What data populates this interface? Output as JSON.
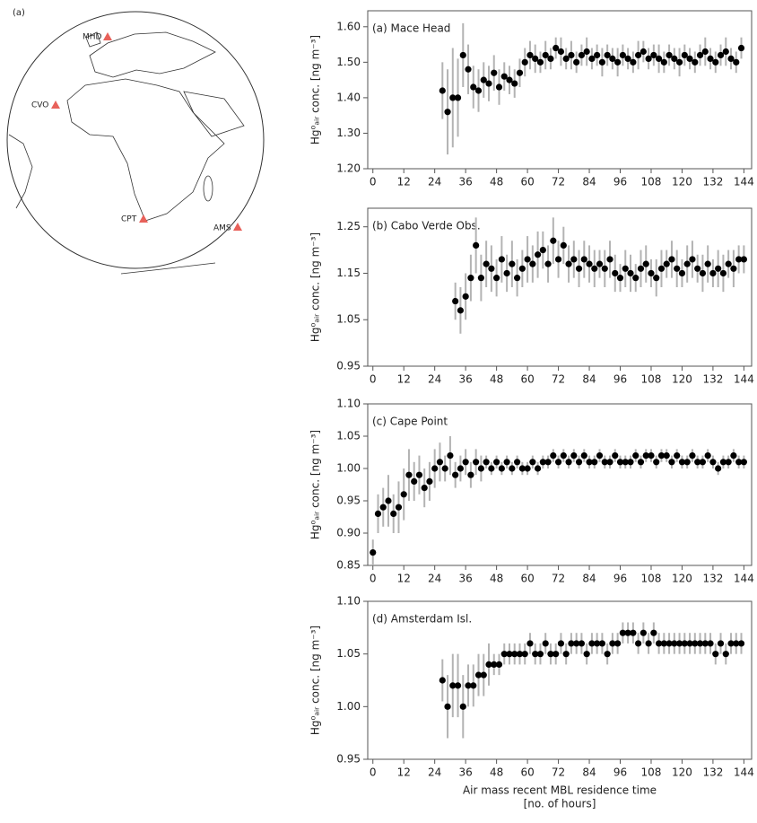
{
  "map": {
    "label": "(a)",
    "stations": [
      "MHD",
      "CVO",
      "CPT",
      "AMS"
    ]
  },
  "chart_data": [
    {
      "type": "scatter",
      "title": "(a) Mace Head",
      "ylabel": "Hg⁰ₐᵢᵣ conc. [ng m⁻³]",
      "color": "#000000",
      "error_color": "#b3b3b3",
      "x": [
        27,
        29,
        31,
        33,
        35,
        37,
        39,
        41,
        43,
        45,
        47,
        49,
        51,
        53,
        55,
        57,
        59,
        61,
        63,
        65,
        67,
        69,
        71,
        73,
        75,
        77,
        79,
        81,
        83,
        85,
        87,
        89,
        91,
        93,
        95,
        97,
        99,
        101,
        103,
        105,
        107,
        109,
        111,
        113,
        115,
        117,
        119,
        121,
        123,
        125,
        127,
        129,
        131,
        133,
        135,
        137,
        139,
        141,
        143
      ],
      "values": [
        1.42,
        1.36,
        1.4,
        1.4,
        1.52,
        1.48,
        1.43,
        1.42,
        1.45,
        1.44,
        1.47,
        1.43,
        1.46,
        1.45,
        1.44,
        1.47,
        1.5,
        1.52,
        1.51,
        1.5,
        1.52,
        1.51,
        1.54,
        1.53,
        1.51,
        1.52,
        1.5,
        1.52,
        1.53,
        1.51,
        1.52,
        1.5,
        1.52,
        1.51,
        1.5,
        1.52,
        1.51,
        1.5,
        1.52,
        1.53,
        1.51,
        1.52,
        1.51,
        1.5,
        1.52,
        1.51,
        1.5,
        1.52,
        1.51,
        1.5,
        1.52,
        1.53,
        1.51,
        1.5,
        1.52,
        1.53,
        1.51,
        1.5,
        1.54
      ],
      "errors": [
        0.08,
        0.12,
        0.14,
        0.11,
        0.09,
        0.07,
        0.06,
        0.06,
        0.05,
        0.05,
        0.05,
        0.05,
        0.04,
        0.04,
        0.04,
        0.04,
        0.04,
        0.04,
        0.04,
        0.03,
        0.04,
        0.03,
        0.03,
        0.04,
        0.03,
        0.04,
        0.03,
        0.03,
        0.04,
        0.03,
        0.03,
        0.04,
        0.03,
        0.03,
        0.04,
        0.03,
        0.03,
        0.03,
        0.04,
        0.03,
        0.03,
        0.03,
        0.04,
        0.03,
        0.03,
        0.03,
        0.04,
        0.03,
        0.03,
        0.03,
        0.03,
        0.04,
        0.03,
        0.03,
        0.03,
        0.04,
        0.03,
        0.03,
        0.03
      ],
      "xlim": [
        -2,
        147
      ],
      "xticks": [
        0,
        12,
        24,
        36,
        48,
        60,
        72,
        84,
        96,
        108,
        120,
        132,
        144
      ],
      "ylim": [
        1.2,
        1.645
      ],
      "yticks": [
        {
          "value": 1.2,
          "label": "1.20"
        },
        {
          "value": 1.3,
          "label": "1.30"
        },
        {
          "value": 1.4,
          "label": "1.40"
        },
        {
          "value": 1.5,
          "label": "1.50"
        },
        {
          "value": 1.6,
          "label": "1.60"
        }
      ]
    },
    {
      "type": "scatter",
      "title": "(b) Cabo Verde Obs.",
      "ylabel": "Hg⁰ₐᵢᵣ conc. [ng m⁻³]",
      "color": "#000000",
      "error_color": "#b3b3b3",
      "x": [
        32,
        34,
        36,
        38,
        40,
        42,
        44,
        46,
        48,
        50,
        52,
        54,
        56,
        58,
        60,
        62,
        64,
        66,
        68,
        70,
        72,
        74,
        76,
        78,
        80,
        82,
        84,
        86,
        88,
        90,
        92,
        94,
        96,
        98,
        100,
        102,
        104,
        106,
        108,
        110,
        112,
        114,
        116,
        118,
        120,
        122,
        124,
        126,
        128,
        130,
        132,
        134,
        136,
        138,
        140,
        142,
        144
      ],
      "values": [
        1.09,
        1.07,
        1.1,
        1.14,
        1.21,
        1.14,
        1.17,
        1.16,
        1.14,
        1.18,
        1.15,
        1.17,
        1.14,
        1.16,
        1.18,
        1.17,
        1.19,
        1.2,
        1.17,
        1.22,
        1.18,
        1.21,
        1.17,
        1.18,
        1.16,
        1.18,
        1.17,
        1.16,
        1.17,
        1.16,
        1.18,
        1.15,
        1.14,
        1.16,
        1.15,
        1.14,
        1.16,
        1.17,
        1.15,
        1.14,
        1.16,
        1.17,
        1.18,
        1.16,
        1.15,
        1.17,
        1.18,
        1.16,
        1.15,
        1.17,
        1.15,
        1.16,
        1.15,
        1.17,
        1.16,
        1.18,
        1.18
      ],
      "errors": [
        0.04,
        0.05,
        0.05,
        0.05,
        0.06,
        0.05,
        0.05,
        0.05,
        0.04,
        0.05,
        0.04,
        0.05,
        0.04,
        0.04,
        0.05,
        0.04,
        0.05,
        0.04,
        0.04,
        0.05,
        0.04,
        0.04,
        0.04,
        0.04,
        0.04,
        0.04,
        0.04,
        0.04,
        0.03,
        0.04,
        0.04,
        0.04,
        0.03,
        0.04,
        0.04,
        0.03,
        0.04,
        0.04,
        0.03,
        0.04,
        0.04,
        0.03,
        0.04,
        0.04,
        0.03,
        0.04,
        0.04,
        0.03,
        0.04,
        0.04,
        0.03,
        0.04,
        0.04,
        0.03,
        0.04,
        0.03,
        0.03
      ],
      "xlim": [
        -2,
        147
      ],
      "xticks": [
        0,
        12,
        24,
        36,
        48,
        60,
        72,
        84,
        96,
        108,
        120,
        132,
        144
      ],
      "ylim": [
        0.95,
        1.29
      ],
      "yticks": [
        {
          "value": 0.95,
          "label": "0.95"
        },
        {
          "value": 1.05,
          "label": "1.05"
        },
        {
          "value": 1.15,
          "label": "1.15"
        },
        {
          "value": 1.25,
          "label": "1.25"
        }
      ]
    },
    {
      "type": "scatter",
      "title": "(c) Cape Point",
      "ylabel": "Hg⁰ₐᵢᵣ conc. [ng m⁻³]",
      "color": "#000000",
      "error_color": "#b3b3b3",
      "x": [
        0,
        2,
        4,
        6,
        8,
        10,
        12,
        14,
        16,
        18,
        20,
        22,
        24,
        26,
        28,
        30,
        32,
        34,
        36,
        38,
        40,
        42,
        44,
        46,
        48,
        50,
        52,
        54,
        56,
        58,
        60,
        62,
        64,
        66,
        68,
        70,
        72,
        74,
        76,
        78,
        80,
        82,
        84,
        86,
        88,
        90,
        92,
        94,
        96,
        98,
        100,
        102,
        104,
        106,
        108,
        110,
        112,
        114,
        116,
        118,
        120,
        122,
        124,
        126,
        128,
        130,
        132,
        134,
        136,
        138,
        140,
        142,
        144
      ],
      "values": [
        0.87,
        0.93,
        0.94,
        0.95,
        0.93,
        0.94,
        0.96,
        0.99,
        0.98,
        0.99,
        0.97,
        0.98,
        1.0,
        1.01,
        1.0,
        1.02,
        0.99,
        1.0,
        1.01,
        0.99,
        1.01,
        1.0,
        1.01,
        1.0,
        1.01,
        1.0,
        1.01,
        1.0,
        1.01,
        1.0,
        1.0,
        1.01,
        1.0,
        1.01,
        1.01,
        1.02,
        1.01,
        1.02,
        1.01,
        1.02,
        1.01,
        1.02,
        1.01,
        1.01,
        1.02,
        1.01,
        1.01,
        1.02,
        1.01,
        1.01,
        1.01,
        1.02,
        1.01,
        1.02,
        1.02,
        1.01,
        1.02,
        1.02,
        1.01,
        1.02,
        1.01,
        1.01,
        1.02,
        1.01,
        1.01,
        1.02,
        1.01,
        1.0,
        1.01,
        1.01,
        1.02,
        1.01,
        1.01
      ],
      "errors": [
        0.02,
        0.03,
        0.03,
        0.04,
        0.03,
        0.04,
        0.04,
        0.04,
        0.03,
        0.03,
        0.03,
        0.03,
        0.03,
        0.03,
        0.02,
        0.03,
        0.02,
        0.02,
        0.02,
        0.02,
        0.02,
        0.02,
        0.01,
        0.01,
        0.01,
        0.01,
        0.01,
        0.01,
        0.01,
        0.01,
        0.01,
        0.01,
        0.01,
        0.01,
        0.01,
        0.01,
        0.01,
        0.01,
        0.01,
        0.01,
        0.01,
        0.01,
        0.01,
        0.01,
        0.01,
        0.01,
        0.01,
        0.01,
        0.01,
        0.01,
        0.01,
        0.01,
        0.01,
        0.01,
        0.01,
        0.01,
        0.01,
        0.01,
        0.01,
        0.01,
        0.01,
        0.01,
        0.01,
        0.01,
        0.01,
        0.01,
        0.01,
        0.01,
        0.01,
        0.01,
        0.01,
        0.01,
        0.01
      ],
      "xlim": [
        -2,
        147
      ],
      "xticks": [
        0,
        12,
        24,
        36,
        48,
        60,
        72,
        84,
        96,
        108,
        120,
        132,
        144
      ],
      "ylim": [
        0.85,
        1.1
      ],
      "yticks": [
        {
          "value": 0.85,
          "label": "0.85"
        },
        {
          "value": 0.9,
          "label": "0.90"
        },
        {
          "value": 0.95,
          "label": "0.95"
        },
        {
          "value": 1.0,
          "label": "1.00"
        },
        {
          "value": 1.05,
          "label": "1.05"
        },
        {
          "value": 1.1,
          "label": "1.10"
        }
      ]
    },
    {
      "type": "scatter",
      "title": "(d) Amsterdam Isl.",
      "ylabel": "Hg⁰ₐᵢᵣ conc. [ng m⁻³]",
      "color": "#000000",
      "error_color": "#b3b3b3",
      "xlabel": [
        "Air mass recent MBL residence time",
        "[no. of hours]"
      ],
      "x": [
        27,
        29,
        31,
        33,
        35,
        37,
        39,
        41,
        43,
        45,
        47,
        49,
        51,
        53,
        55,
        57,
        59,
        61,
        63,
        65,
        67,
        69,
        71,
        73,
        75,
        77,
        79,
        81,
        83,
        85,
        87,
        89,
        91,
        93,
        95,
        97,
        99,
        101,
        103,
        105,
        107,
        109,
        111,
        113,
        115,
        117,
        119,
        121,
        123,
        125,
        127,
        129,
        131,
        133,
        135,
        137,
        139,
        141,
        143
      ],
      "values": [
        1.025,
        1.0,
        1.02,
        1.02,
        1.0,
        1.02,
        1.02,
        1.03,
        1.03,
        1.04,
        1.04,
        1.04,
        1.05,
        1.05,
        1.05,
        1.05,
        1.05,
        1.06,
        1.05,
        1.05,
        1.06,
        1.05,
        1.05,
        1.06,
        1.05,
        1.06,
        1.06,
        1.06,
        1.05,
        1.06,
        1.06,
        1.06,
        1.05,
        1.06,
        1.06,
        1.07,
        1.07,
        1.07,
        1.06,
        1.07,
        1.06,
        1.07,
        1.06,
        1.06,
        1.06,
        1.06,
        1.06,
        1.06,
        1.06,
        1.06,
        1.06,
        1.06,
        1.06,
        1.05,
        1.06,
        1.05,
        1.06,
        1.06,
        1.06
      ],
      "errors": [
        0.02,
        0.03,
        0.03,
        0.03,
        0.03,
        0.02,
        0.02,
        0.02,
        0.02,
        0.02,
        0.01,
        0.01,
        0.01,
        0.01,
        0.01,
        0.01,
        0.01,
        0.01,
        0.01,
        0.01,
        0.01,
        0.01,
        0.01,
        0.01,
        0.01,
        0.01,
        0.01,
        0.01,
        0.01,
        0.01,
        0.01,
        0.01,
        0.01,
        0.01,
        0.01,
        0.01,
        0.01,
        0.01,
        0.01,
        0.01,
        0.01,
        0.01,
        0.01,
        0.01,
        0.01,
        0.01,
        0.01,
        0.01,
        0.01,
        0.01,
        0.01,
        0.01,
        0.01,
        0.01,
        0.01,
        0.01,
        0.01,
        0.01,
        0.01
      ],
      "xlim": [
        -2,
        147
      ],
      "xticks": [
        0,
        12,
        24,
        36,
        48,
        60,
        72,
        84,
        96,
        108,
        120,
        132,
        144
      ],
      "ylim": [
        0.95,
        1.1
      ],
      "yticks": [
        {
          "value": 0.95,
          "label": "0.95"
        },
        {
          "value": 1.0,
          "label": "1.00"
        },
        {
          "value": 1.05,
          "label": "1.05"
        },
        {
          "value": 1.1,
          "label": "1.10"
        }
      ]
    }
  ]
}
